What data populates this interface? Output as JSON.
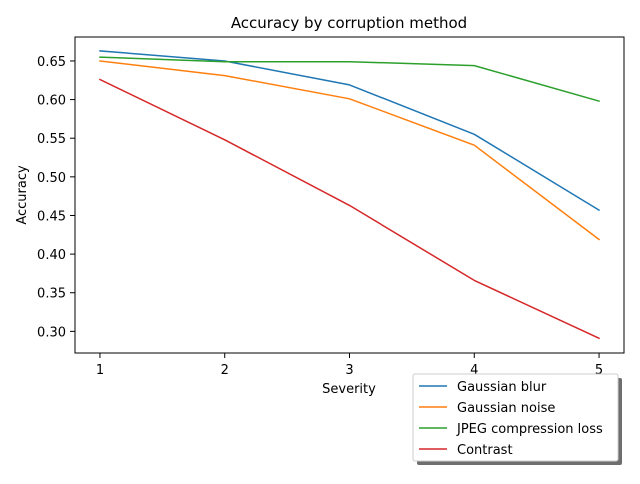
{
  "chart_data": {
    "type": "line",
    "title": "Accuracy by corruption method",
    "xlabel": "Severity",
    "ylabel": "Accuracy",
    "x": [
      1,
      2,
      3,
      4,
      5
    ],
    "x_ticks": [
      "1",
      "2",
      "3",
      "4",
      "5"
    ],
    "y_ticks": [
      "0.30",
      "0.35",
      "0.40",
      "0.45",
      "0.50",
      "0.55",
      "0.60",
      "0.65"
    ],
    "xlim": [
      0.8,
      5.2
    ],
    "ylim": [
      0.272,
      0.681
    ],
    "grid": false,
    "legend_placement": "lower-right, outside axes",
    "series": [
      {
        "name": "Gaussian blur",
        "color": "#1f77b4",
        "values": [
          0.663,
          0.65,
          0.619,
          0.555,
          0.457
        ]
      },
      {
        "name": "Gaussian noise",
        "color": "#ff7f0e",
        "values": [
          0.65,
          0.631,
          0.601,
          0.541,
          0.419
        ]
      },
      {
        "name": "JPEG compression loss",
        "color": "#2ca02c",
        "values": [
          0.655,
          0.649,
          0.649,
          0.644,
          0.598
        ]
      },
      {
        "name": "Contrast",
        "color": "#d62728",
        "values": [
          0.626,
          0.548,
          0.463,
          0.366,
          0.291
        ]
      }
    ]
  }
}
